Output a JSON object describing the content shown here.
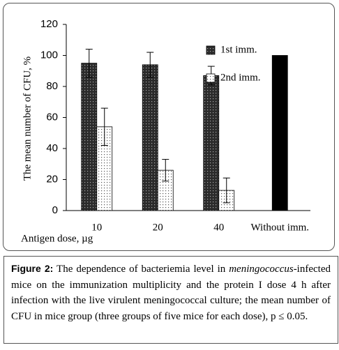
{
  "chart_data": {
    "type": "bar",
    "y_label": "The mean number of CFU, %",
    "x_label": "Antigen dose, µg",
    "categories": [
      "10",
      "20",
      "40",
      "Without imm."
    ],
    "series": [
      {
        "name": "1st imm.",
        "color": "#2b2b2b",
        "pattern": "dots",
        "values": [
          95,
          94,
          87,
          null
        ],
        "errors": [
          9,
          8,
          6,
          null
        ]
      },
      {
        "name": "2nd imm.",
        "color": "#ffffff",
        "pattern": "dots",
        "values": [
          54,
          26,
          13,
          null
        ],
        "errors": [
          12,
          7,
          8,
          null
        ]
      },
      {
        "color": "#000000",
        "pattern": "solid",
        "values": [
          null,
          null,
          null,
          100
        ]
      }
    ],
    "ylim": [
      0,
      120
    ],
    "yticks": [
      0,
      20,
      40,
      60,
      80,
      100,
      120
    ],
    "grid": false
  },
  "caption": {
    "label": "Figure 2:",
    "text": [
      "The dependence of bacteriemia level in ",
      "meningococcus",
      "-infected mice on the immunization multiplicity and the protein I dose 4 h after infection with the live virulent meningococcal culture; the mean number of CFU in mice group (three groups of five mice for each dose), p ≤ 0.05."
    ]
  }
}
